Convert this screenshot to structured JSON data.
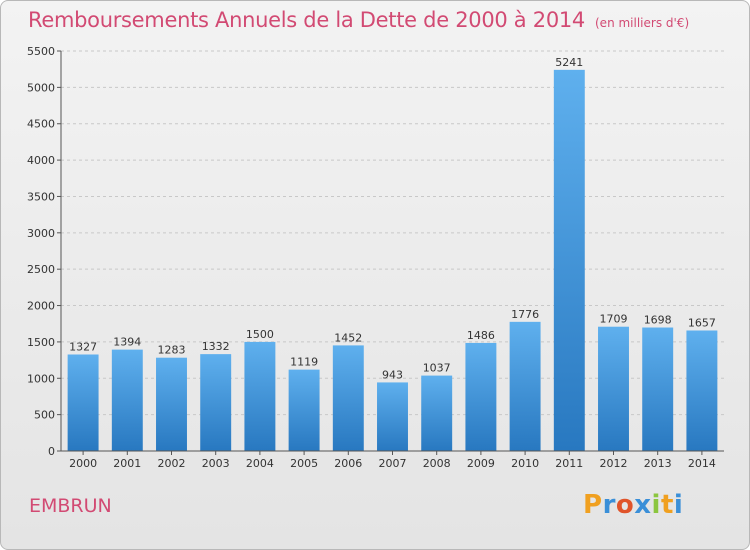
{
  "title": "Remboursements Annuels de la Dette de 2000 à 2014",
  "subtitle": "(en milliers d'€)",
  "location": "EMBRUN",
  "brand": {
    "letters": [
      "P",
      "r",
      "o",
      "x",
      "i",
      "t",
      "i"
    ],
    "colors": [
      "#f0a020",
      "#3a8fd8",
      "#e0542a",
      "#3a8fd8",
      "#8cc63f",
      "#f0a020",
      "#3a8fd8"
    ]
  },
  "colors": {
    "title": "#d24a73",
    "bar_light": "#5fb0ee",
    "bar_dark": "#2878c0",
    "grid": "#c8c8c8"
  },
  "chart_data": {
    "type": "bar",
    "title": "Remboursements Annuels de la Dette de 2000 à 2014",
    "subtitle": "(en milliers d'€)",
    "categories": [
      "2000",
      "2001",
      "2002",
      "2003",
      "2004",
      "2005",
      "2006",
      "2007",
      "2008",
      "2009",
      "2010",
      "2011",
      "2012",
      "2013",
      "2014"
    ],
    "values": [
      1327,
      1394,
      1283,
      1332,
      1500,
      1119,
      1452,
      943,
      1037,
      1486,
      1776,
      5241,
      1709,
      1698,
      1657
    ],
    "ylim": [
      0,
      5500
    ],
    "yticks": [
      0,
      500,
      1000,
      1500,
      2000,
      2500,
      3000,
      3500,
      4000,
      4500,
      5000,
      5500
    ],
    "grid": true,
    "data_labels": true
  }
}
